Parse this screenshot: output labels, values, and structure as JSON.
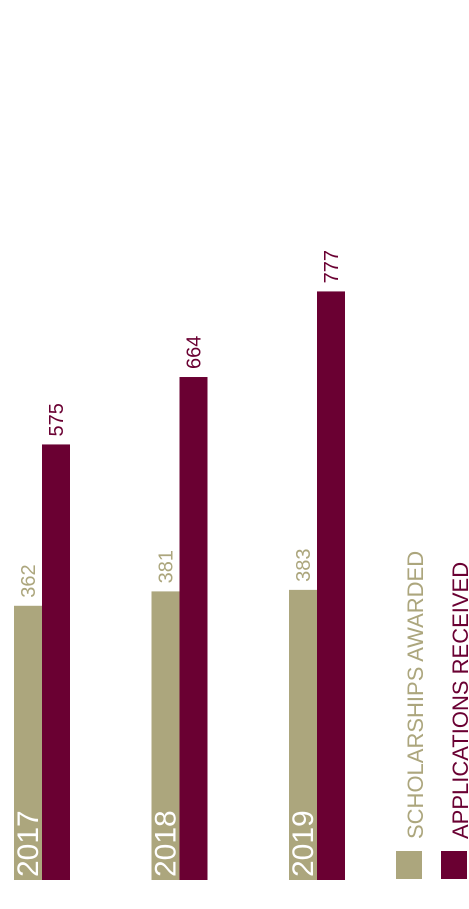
{
  "chart_data": {
    "type": "bar",
    "title": "",
    "xlabel": "",
    "ylabel": "",
    "categories": [
      "2017",
      "2018",
      "2019"
    ],
    "series": [
      {
        "name": "SCHOLARSHIPS AWARDED",
        "values": [
          362,
          381,
          383
        ],
        "color": "#aca67d"
      },
      {
        "name": "APPLICATIONS RECEIVED",
        "values": [
          575,
          664,
          777
        ],
        "color": "#6a0032"
      }
    ],
    "ylim": [
      0,
      850
    ],
    "grid": false,
    "legend_position": "bottom-right",
    "orientation": "vertical-bars-rotated-text"
  }
}
